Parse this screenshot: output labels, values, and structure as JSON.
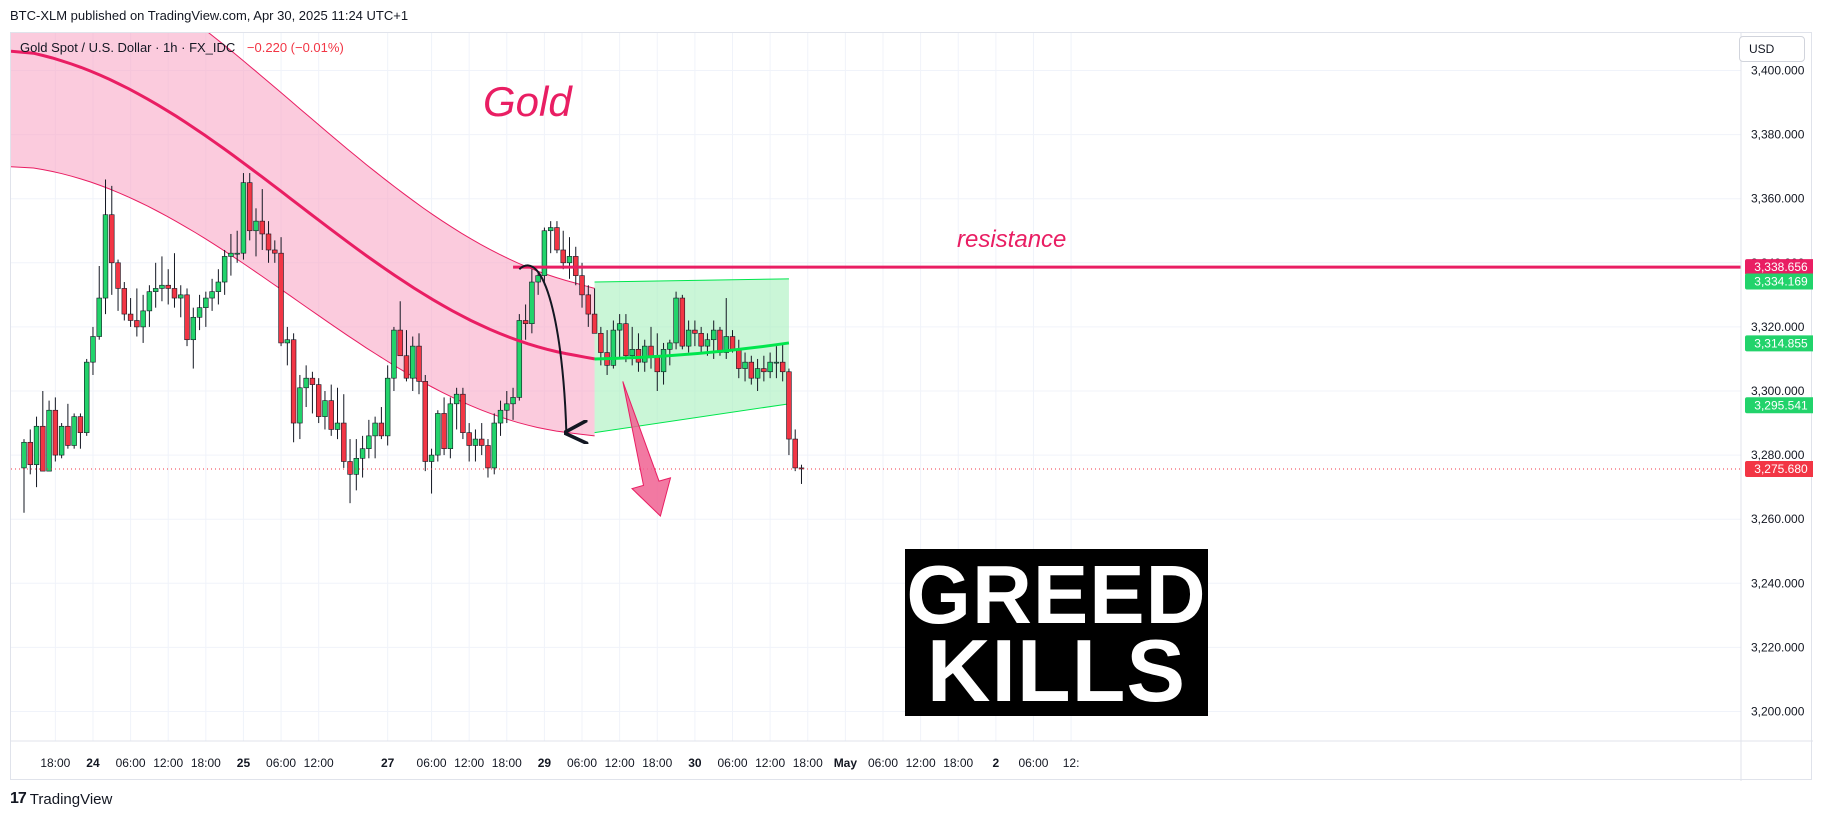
{
  "header": {
    "published": "BTC-XLM published on TradingView.com, Apr 30, 2025 11:24 UTC+1"
  },
  "symbol": {
    "name": "Gold Spot / U.S. Dollar · 1h · FX_IDC",
    "change": "−0.220 (−0.01%)"
  },
  "currency": "USD",
  "footer": {
    "brand": "TradingView",
    "logo": "17"
  },
  "annotations": {
    "gold_title": "Gold",
    "resistance": "resistance",
    "greed_line1": "GREED",
    "greed_line2": "KILLS"
  },
  "colors": {
    "up": "#22d36b",
    "down": "#f23645",
    "wick": "#131722",
    "downtrend_band": "#f8a8c6",
    "downtrend_line": "#e91e63",
    "range_band": "#a6f0bd",
    "range_line": "#00e64d",
    "resistance": "#e91e63",
    "last_price": "#f23645"
  },
  "chart_data": {
    "type": "candlestick",
    "symbol": "Gold Spot / U.S. Dollar",
    "interval": "1h",
    "ylim": [
      3190,
      3410
    ],
    "y_ticks": [
      "3,400.000",
      "3,380.000",
      "3,360.000",
      "3,340.000",
      "3,320.000",
      "3,300.000",
      "3,280.000",
      "3,260.000",
      "3,240.000",
      "3,220.000",
      "3,200.000"
    ],
    "y_tick_values": [
      3400,
      3380,
      3360,
      3340,
      3320,
      3300,
      3280,
      3260,
      3240,
      3220,
      3200
    ],
    "x_ticks": [
      {
        "label": "18:00",
        "bar": 5
      },
      {
        "label": "24",
        "bar": 11
      },
      {
        "label": "06:00",
        "bar": 17
      },
      {
        "label": "12:00",
        "bar": 23
      },
      {
        "label": "18:00",
        "bar": 29
      },
      {
        "label": "25",
        "bar": 35
      },
      {
        "label": "06:00",
        "bar": 41
      },
      {
        "label": "12:00",
        "bar": 47
      },
      {
        "label": "27",
        "bar": 58
      },
      {
        "label": "06:00",
        "bar": 65
      },
      {
        "label": "12:00",
        "bar": 71
      },
      {
        "label": "18:00",
        "bar": 77
      },
      {
        "label": "29",
        "bar": 83
      },
      {
        "label": "06:00",
        "bar": 89
      },
      {
        "label": "12:00",
        "bar": 95
      },
      {
        "label": "18:00",
        "bar": 101
      },
      {
        "label": "30",
        "bar": 107
      },
      {
        "label": "06:00",
        "bar": 113
      },
      {
        "label": "12:00",
        "bar": 119
      },
      {
        "label": "18:00",
        "bar": 125
      },
      {
        "label": "May",
        "bar": 131
      },
      {
        "label": "06:00",
        "bar": 137
      },
      {
        "label": "12:00",
        "bar": 143
      },
      {
        "label": "18:00",
        "bar": 149
      },
      {
        "label": "2",
        "bar": 155
      },
      {
        "label": "06:00",
        "bar": 161
      },
      {
        "label": "12:",
        "bar": 167
      }
    ],
    "candles": [
      {
        "o": 3276,
        "h": 3285,
        "l": 3262,
        "c": 3284
      },
      {
        "o": 3284,
        "h": 3288,
        "l": 3274,
        "c": 3277
      },
      {
        "o": 3277,
        "h": 3292,
        "l": 3270,
        "c": 3289
      },
      {
        "o": 3289,
        "h": 3300,
        "l": 3276,
        "c": 3275
      },
      {
        "o": 3275,
        "h": 3297,
        "l": 3276,
        "c": 3294
      },
      {
        "o": 3294,
        "h": 3298,
        "l": 3278,
        "c": 3280
      },
      {
        "o": 3280,
        "h": 3290,
        "l": 3279,
        "c": 3289
      },
      {
        "o": 3289,
        "h": 3296,
        "l": 3282,
        "c": 3283
      },
      {
        "o": 3283,
        "h": 3293,
        "l": 3282,
        "c": 3292
      },
      {
        "o": 3292,
        "h": 3293,
        "l": 3282,
        "c": 3287
      },
      {
        "o": 3287,
        "h": 3310,
        "l": 3286,
        "c": 3309
      },
      {
        "o": 3309,
        "h": 3320,
        "l": 3305,
        "c": 3317
      },
      {
        "o": 3317,
        "h": 3339,
        "l": 3316,
        "c": 3329
      },
      {
        "o": 3329,
        "h": 3366,
        "l": 3324,
        "c": 3355
      },
      {
        "o": 3355,
        "h": 3364,
        "l": 3330,
        "c": 3340
      },
      {
        "o": 3340,
        "h": 3341,
        "l": 3325,
        "c": 3332
      },
      {
        "o": 3332,
        "h": 3334,
        "l": 3322,
        "c": 3324
      },
      {
        "o": 3324,
        "h": 3329,
        "l": 3320,
        "c": 3322
      },
      {
        "o": 3322,
        "h": 3332,
        "l": 3317,
        "c": 3320
      },
      {
        "o": 3320,
        "h": 3330,
        "l": 3315,
        "c": 3325
      },
      {
        "o": 3325,
        "h": 3333,
        "l": 3320,
        "c": 3331
      },
      {
        "o": 3331,
        "h": 3340,
        "l": 3326,
        "c": 3332
      },
      {
        "o": 3332,
        "h": 3342,
        "l": 3328,
        "c": 3333
      },
      {
        "o": 3333,
        "h": 3338,
        "l": 3327,
        "c": 3332
      },
      {
        "o": 3332,
        "h": 3343,
        "l": 3326,
        "c": 3329
      },
      {
        "o": 3329,
        "h": 3333,
        "l": 3323,
        "c": 3330
      },
      {
        "o": 3330,
        "h": 3332,
        "l": 3314,
        "c": 3316
      },
      {
        "o": 3316,
        "h": 3326,
        "l": 3307,
        "c": 3323
      },
      {
        "o": 3323,
        "h": 3330,
        "l": 3319,
        "c": 3326
      },
      {
        "o": 3326,
        "h": 3331,
        "l": 3320,
        "c": 3329
      },
      {
        "o": 3329,
        "h": 3335,
        "l": 3325,
        "c": 3331
      },
      {
        "o": 3331,
        "h": 3338,
        "l": 3327,
        "c": 3334
      },
      {
        "o": 3334,
        "h": 3344,
        "l": 3330,
        "c": 3342
      },
      {
        "o": 3342,
        "h": 3349,
        "l": 3336,
        "c": 3343
      },
      {
        "o": 3343,
        "h": 3350,
        "l": 3340,
        "c": 3343
      },
      {
        "o": 3343,
        "h": 3368,
        "l": 3341,
        "c": 3365
      },
      {
        "o": 3365,
        "h": 3368,
        "l": 3347,
        "c": 3350
      },
      {
        "o": 3350,
        "h": 3357,
        "l": 3342,
        "c": 3353
      },
      {
        "o": 3353,
        "h": 3363,
        "l": 3344,
        "c": 3349
      },
      {
        "o": 3349,
        "h": 3353,
        "l": 3340,
        "c": 3344
      },
      {
        "o": 3344,
        "h": 3347,
        "l": 3340,
        "c": 3343
      },
      {
        "o": 3343,
        "h": 3348,
        "l": 3314,
        "c": 3315
      },
      {
        "o": 3315,
        "h": 3320,
        "l": 3308,
        "c": 3316
      },
      {
        "o": 3316,
        "h": 3318,
        "l": 3284,
        "c": 3290
      },
      {
        "o": 3290,
        "h": 3305,
        "l": 3285,
        "c": 3301
      },
      {
        "o": 3301,
        "h": 3308,
        "l": 3295,
        "c": 3304
      },
      {
        "o": 3304,
        "h": 3306,
        "l": 3293,
        "c": 3302
      },
      {
        "o": 3302,
        "h": 3304,
        "l": 3290,
        "c": 3292
      },
      {
        "o": 3292,
        "h": 3300,
        "l": 3288,
        "c": 3297
      },
      {
        "o": 3297,
        "h": 3302,
        "l": 3286,
        "c": 3288
      },
      {
        "o": 3288,
        "h": 3301,
        "l": 3285,
        "c": 3290
      },
      {
        "o": 3290,
        "h": 3299,
        "l": 3276,
        "c": 3278
      },
      {
        "o": 3278,
        "h": 3285,
        "l": 3265,
        "c": 3274
      },
      {
        "o": 3274,
        "h": 3285,
        "l": 3269,
        "c": 3279
      },
      {
        "o": 3279,
        "h": 3286,
        "l": 3273,
        "c": 3282
      },
      {
        "o": 3282,
        "h": 3291,
        "l": 3279,
        "c": 3286
      },
      {
        "o": 3286,
        "h": 3292,
        "l": 3279,
        "c": 3290
      },
      {
        "o": 3290,
        "h": 3295,
        "l": 3285,
        "c": 3286
      },
      {
        "o": 3286,
        "h": 3308,
        "l": 3283,
        "c": 3304
      },
      {
        "o": 3304,
        "h": 3320,
        "l": 3300,
        "c": 3319
      },
      {
        "o": 3319,
        "h": 3328,
        "l": 3312,
        "c": 3311
      },
      {
        "o": 3311,
        "h": 3319,
        "l": 3303,
        "c": 3304
      },
      {
        "o": 3304,
        "h": 3317,
        "l": 3300,
        "c": 3314
      },
      {
        "o": 3314,
        "h": 3318,
        "l": 3299,
        "c": 3303
      },
      {
        "o": 3303,
        "h": 3305,
        "l": 3275,
        "c": 3278
      },
      {
        "o": 3278,
        "h": 3282,
        "l": 3268,
        "c": 3280
      },
      {
        "o": 3280,
        "h": 3294,
        "l": 3278,
        "c": 3293
      },
      {
        "o": 3293,
        "h": 3298,
        "l": 3280,
        "c": 3282
      },
      {
        "o": 3282,
        "h": 3298,
        "l": 3279,
        "c": 3296
      },
      {
        "o": 3296,
        "h": 3301,
        "l": 3288,
        "c": 3299
      },
      {
        "o": 3299,
        "h": 3301,
        "l": 3285,
        "c": 3287
      },
      {
        "o": 3287,
        "h": 3290,
        "l": 3278,
        "c": 3283
      },
      {
        "o": 3283,
        "h": 3288,
        "l": 3278,
        "c": 3285
      },
      {
        "o": 3285,
        "h": 3290,
        "l": 3280,
        "c": 3283
      },
      {
        "o": 3283,
        "h": 3285,
        "l": 3273,
        "c": 3276
      },
      {
        "o": 3276,
        "h": 3293,
        "l": 3274,
        "c": 3290
      },
      {
        "o": 3290,
        "h": 3297,
        "l": 3286,
        "c": 3294
      },
      {
        "o": 3294,
        "h": 3300,
        "l": 3290,
        "c": 3296
      },
      {
        "o": 3296,
        "h": 3301,
        "l": 3291,
        "c": 3298
      },
      {
        "o": 3298,
        "h": 3324,
        "l": 3297,
        "c": 3322
      },
      {
        "o": 3322,
        "h": 3327,
        "l": 3316,
        "c": 3321
      },
      {
        "o": 3321,
        "h": 3338,
        "l": 3318,
        "c": 3334
      },
      {
        "o": 3334,
        "h": 3337,
        "l": 3330,
        "c": 3336
      },
      {
        "o": 3336,
        "h": 3351,
        "l": 3333,
        "c": 3350
      },
      {
        "o": 3350,
        "h": 3353,
        "l": 3343,
        "c": 3351
      },
      {
        "o": 3351,
        "h": 3353,
        "l": 3343,
        "c": 3344
      },
      {
        "o": 3344,
        "h": 3350,
        "l": 3338,
        "c": 3340
      },
      {
        "o": 3340,
        "h": 3348,
        "l": 3335,
        "c": 3342
      },
      {
        "o": 3342,
        "h": 3345,
        "l": 3333,
        "c": 3336
      },
      {
        "o": 3336,
        "h": 3340,
        "l": 3326,
        "c": 3330
      },
      {
        "o": 3330,
        "h": 3333,
        "l": 3320,
        "c": 3324
      },
      {
        "o": 3324,
        "h": 3332,
        "l": 3318,
        "c": 3318
      },
      {
        "o": 3318,
        "h": 3320,
        "l": 3308,
        "c": 3312
      },
      {
        "o": 3312,
        "h": 3319,
        "l": 3305,
        "c": 3308
      },
      {
        "o": 3308,
        "h": 3322,
        "l": 3307,
        "c": 3319
      },
      {
        "o": 3319,
        "h": 3324,
        "l": 3310,
        "c": 3321
      },
      {
        "o": 3321,
        "h": 3324,
        "l": 3309,
        "c": 3311
      },
      {
        "o": 3311,
        "h": 3320,
        "l": 3308,
        "c": 3313
      },
      {
        "o": 3313,
        "h": 3318,
        "l": 3306,
        "c": 3309
      },
      {
        "o": 3309,
        "h": 3316,
        "l": 3306,
        "c": 3314
      },
      {
        "o": 3314,
        "h": 3320,
        "l": 3307,
        "c": 3311
      },
      {
        "o": 3311,
        "h": 3318,
        "l": 3300,
        "c": 3306
      },
      {
        "o": 3306,
        "h": 3315,
        "l": 3302,
        "c": 3313
      },
      {
        "o": 3313,
        "h": 3316,
        "l": 3308,
        "c": 3315
      },
      {
        "o": 3315,
        "h": 3331,
        "l": 3313,
        "c": 3329
      },
      {
        "o": 3329,
        "h": 3330,
        "l": 3313,
        "c": 3314
      },
      {
        "o": 3314,
        "h": 3322,
        "l": 3312,
        "c": 3319
      },
      {
        "o": 3319,
        "h": 3322,
        "l": 3314,
        "c": 3318
      },
      {
        "o": 3318,
        "h": 3320,
        "l": 3312,
        "c": 3314
      },
      {
        "o": 3314,
        "h": 3318,
        "l": 3311,
        "c": 3316
      },
      {
        "o": 3316,
        "h": 3322,
        "l": 3310,
        "c": 3319
      },
      {
        "o": 3319,
        "h": 3320,
        "l": 3311,
        "c": 3312
      },
      {
        "o": 3312,
        "h": 3329,
        "l": 3310,
        "c": 3317
      },
      {
        "o": 3317,
        "h": 3319,
        "l": 3312,
        "c": 3313
      },
      {
        "o": 3313,
        "h": 3316,
        "l": 3304,
        "c": 3307
      },
      {
        "o": 3307,
        "h": 3312,
        "l": 3303,
        "c": 3309
      },
      {
        "o": 3309,
        "h": 3311,
        "l": 3302,
        "c": 3304
      },
      {
        "o": 3304,
        "h": 3310,
        "l": 3300,
        "c": 3307
      },
      {
        "o": 3307,
        "h": 3311,
        "l": 3303,
        "c": 3306
      },
      {
        "o": 3306,
        "h": 3312,
        "l": 3304,
        "c": 3309
      },
      {
        "o": 3309,
        "h": 3314,
        "l": 3304,
        "c": 3309
      },
      {
        "o": 3309,
        "h": 3315,
        "l": 3303,
        "c": 3306
      },
      {
        "o": 3306,
        "h": 3307,
        "l": 3280,
        "c": 3285
      },
      {
        "o": 3285,
        "h": 3288,
        "l": 3275,
        "c": 3276
      },
      {
        "o": 3276,
        "h": 3277,
        "l": 3271,
        "c": 3275.68
      }
    ],
    "indicators": {
      "downtrend_channel": {
        "start_bar": 0,
        "end_bar": 91,
        "mid_start": 3406,
        "mid_end": 3310,
        "upper_offset_start": 38,
        "upper_offset_end": 22,
        "lower_offset_start": 36,
        "lower_offset_end": 24
      },
      "range_channel": {
        "start_bar": 91,
        "end_bar": 122,
        "mid_start": 3310,
        "mid_end": 3315,
        "upper_start": 3334,
        "upper_end": 3335,
        "lower_start": 3287,
        "lower_end": 3296
      },
      "resistance": {
        "start_bar": 78,
        "value": 3338.656
      }
    },
    "price_labels": [
      {
        "label": "3,338.656",
        "value": 3338.656,
        "color": "#e91e63"
      },
      {
        "label": "3,334.169",
        "value": 3334.169,
        "color": "#22d36b"
      },
      {
        "label": "3,314.855",
        "value": 3314.855,
        "color": "#22d36b"
      },
      {
        "label": "3,295.541",
        "value": 3295.541,
        "color": "#22d36b"
      },
      {
        "label": "3,275.680",
        "value": 3275.68,
        "color": "#f23645"
      }
    ],
    "last_price": 3275.68,
    "grid": true
  }
}
